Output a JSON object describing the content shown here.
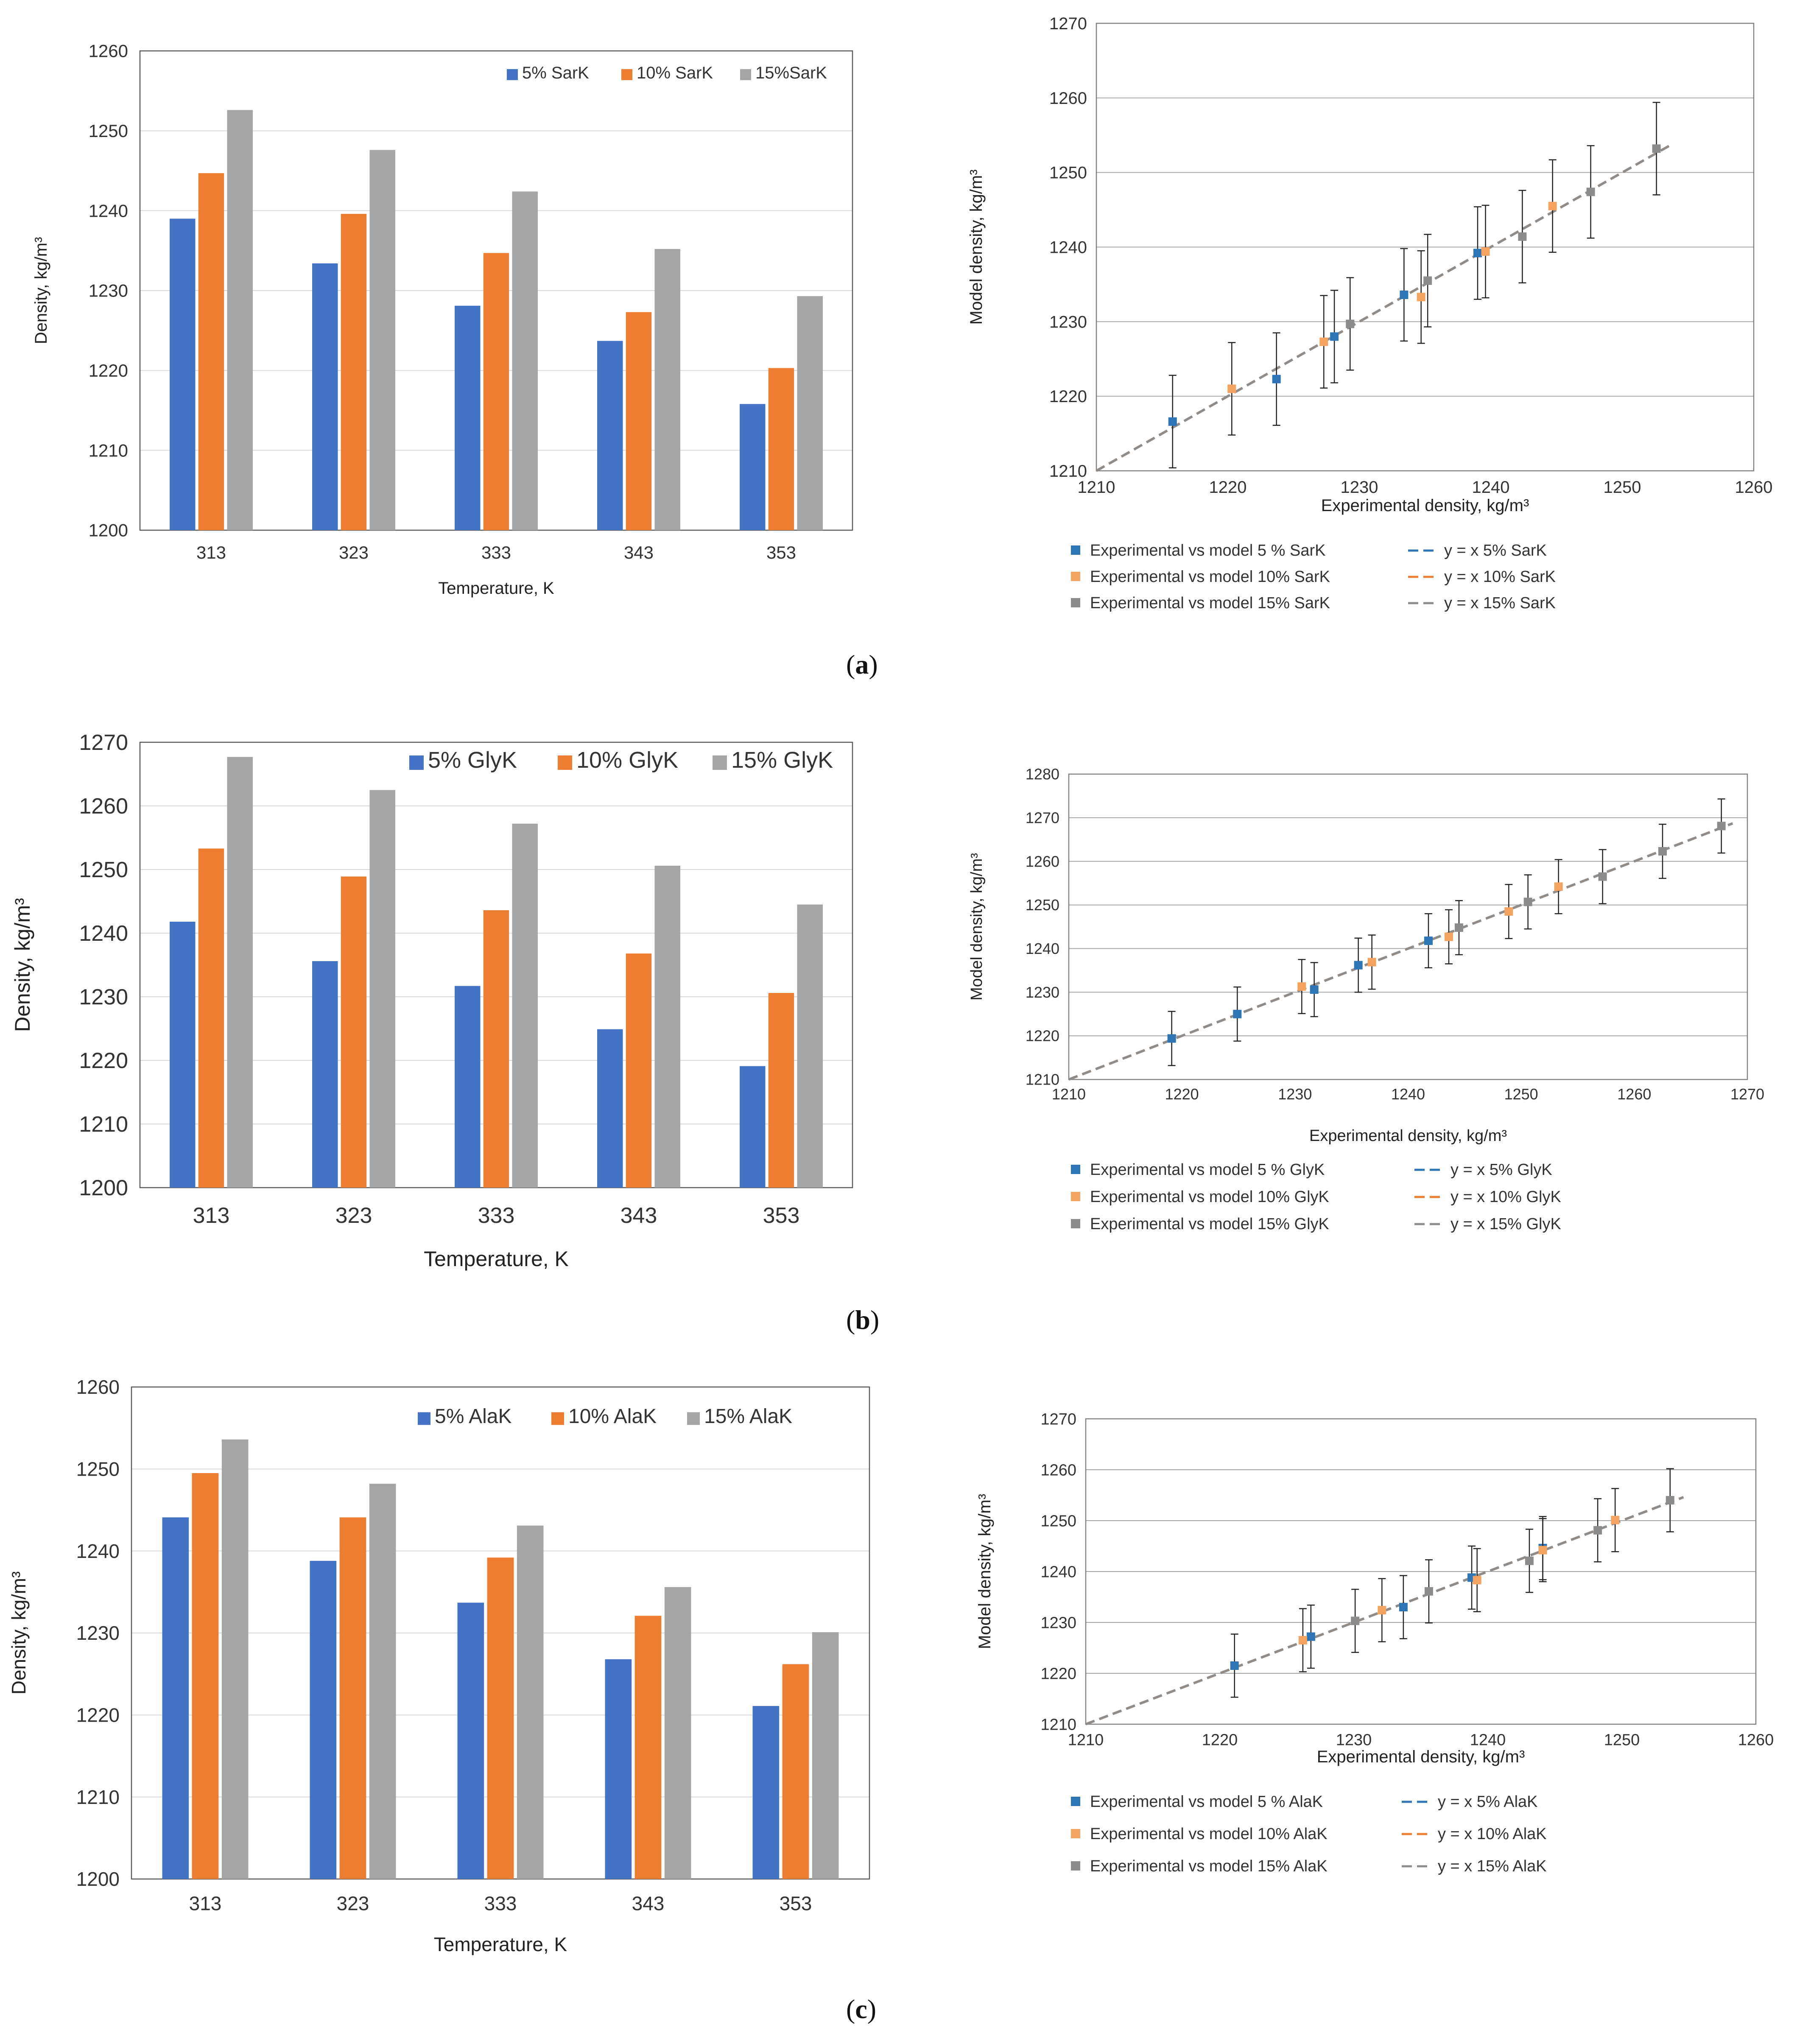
{
  "panels": [
    {
      "label": "a",
      "bar": {
        "type": "bar",
        "categories": [
          "313",
          "323",
          "333",
          "343",
          "353"
        ],
        "series": [
          {
            "name": "5% SarK",
            "values": [
              1239,
              1233.4,
              1228.1,
              1223.7,
              1215.8
            ]
          },
          {
            "name": "10% SarK",
            "values": [
              1244.7,
              1239.6,
              1234.7,
              1227.3,
              1220.3
            ]
          },
          {
            "name": "15%SarK",
            "values": [
              1252.6,
              1247.6,
              1242.4,
              1235.2,
              1229.3
            ]
          }
        ],
        "xlabel": "Temperature, K",
        "ylabel": "Density, kg/m³",
        "ylim": [
          1200,
          1260
        ],
        "yticks": [
          "1200",
          "1210",
          "1220",
          "1230",
          "1240",
          "1250",
          "1260"
        ],
        "legend": "top-right"
      },
      "scatter": {
        "type": "scatter",
        "xlabel": "Experimental density, kg/m³",
        "ylabel": "Model density, kg/m³",
        "xlim": [
          1210,
          1260
        ],
        "ylim": [
          1210,
          1270
        ],
        "xticks": [
          "1210",
          "1220",
          "1230",
          "1240",
          "1250",
          "1260"
        ],
        "yticks": [
          "1210",
          "1220",
          "1230",
          "1240",
          "1250",
          "1260",
          "1270"
        ],
        "error": 6.2,
        "series": [
          {
            "name": "Experimental vs model 5 % SarK",
            "x": [
              1215.8,
              1223.7,
              1228.1,
              1233.4,
              1239
            ],
            "y": [
              1216.6,
              1222.3,
              1228,
              1233.6,
              1239.2
            ]
          },
          {
            "name": "Experimental vs model 10% SarK",
            "x": [
              1220.3,
              1227.3,
              1234.7,
              1239.6,
              1244.7
            ],
            "y": [
              1221,
              1227.3,
              1233.3,
              1239.4,
              1245.5
            ]
          },
          {
            "name": "Experimental vs model 15% SarK",
            "x": [
              1229.3,
              1235.2,
              1242.4,
              1247.6,
              1252.6
            ],
            "y": [
              1229.7,
              1235.5,
              1241.4,
              1247.4,
              1253.2
            ]
          }
        ],
        "fits": [
          {
            "name": "y = x 5% SarK"
          },
          {
            "name": "y = x 10% SarK"
          },
          {
            "name": "y = x 15% SarK"
          }
        ]
      }
    },
    {
      "label": "b",
      "bar": {
        "type": "bar",
        "categories": [
          "313",
          "323",
          "333",
          "343",
          "353"
        ],
        "series": [
          {
            "name": "5% GlyK",
            "values": [
              1241.8,
              1235.6,
              1231.7,
              1224.9,
              1219.1
            ]
          },
          {
            "name": "10% GlyK",
            "values": [
              1253.3,
              1248.9,
              1243.6,
              1236.8,
              1230.6
            ]
          },
          {
            "name": "15% GlyK",
            "values": [
              1267.7,
              1262.5,
              1257.2,
              1250.6,
              1244.5
            ]
          }
        ],
        "xlabel": "Temperature, K",
        "ylabel": "Density, kg/m³",
        "ylim": [
          1200,
          1270
        ],
        "yticks": [
          "1200",
          "1210",
          "1220",
          "1230",
          "1240",
          "1250",
          "1260",
          "1270"
        ],
        "legend": "top-right"
      },
      "scatter": {
        "type": "scatter",
        "xlabel": "Experimental density, kg/m³",
        "ylabel": "Model density, kg/m³",
        "xlim": [
          1210,
          1270
        ],
        "ylim": [
          1210,
          1280
        ],
        "xticks": [
          "1210",
          "1220",
          "1230",
          "1240",
          "1250",
          "1260",
          "1270"
        ],
        "yticks": [
          "1210",
          "1220",
          "1230",
          "1240",
          "1250",
          "1260",
          "1270",
          "1280"
        ],
        "error": 6.2,
        "series": [
          {
            "name": "Experimental vs model 5 % GlyK",
            "x": [
              1219.1,
              1224.9,
              1231.7,
              1235.6,
              1241.8
            ],
            "y": [
              1219.4,
              1225,
              1230.6,
              1236.2,
              1241.8
            ]
          },
          {
            "name": "Experimental vs model 10% GlyK",
            "x": [
              1230.6,
              1236.8,
              1243.6,
              1248.9,
              1253.3
            ],
            "y": [
              1231.3,
              1236.9,
              1242.7,
              1248.5,
              1254.2
            ]
          },
          {
            "name": "Experimental vs model 15% GlyK",
            "x": [
              1244.5,
              1250.6,
              1257.2,
              1262.5,
              1267.7
            ],
            "y": [
              1244.8,
              1250.7,
              1256.5,
              1262.3,
              1268.1
            ]
          }
        ],
        "fits": [
          {
            "name": "y = x 5% GlyK"
          },
          {
            "name": "y = x 10% GlyK"
          },
          {
            "name": "y = x 15% GlyK"
          }
        ]
      }
    },
    {
      "label": "c",
      "bar": {
        "type": "bar",
        "categories": [
          "313",
          "323",
          "333",
          "343",
          "353"
        ],
        "series": [
          {
            "name": "5% AlaK",
            "values": [
              1244.1,
              1238.8,
              1233.7,
              1226.8,
              1221.1
            ]
          },
          {
            "name": "10% AlaK",
            "values": [
              1249.5,
              1244.1,
              1239.2,
              1232.1,
              1226.2
            ]
          },
          {
            "name": "15% AlaK",
            "values": [
              1253.6,
              1248.2,
              1243.1,
              1235.6,
              1230.1
            ]
          }
        ],
        "xlabel": "Temperature, K",
        "ylabel": "Density, kg/m³",
        "ylim": [
          1200,
          1260
        ],
        "yticks": [
          "1200",
          "1210",
          "1220",
          "1230",
          "1240",
          "1250",
          "1260"
        ],
        "legend": "top-right"
      },
      "scatter": {
        "type": "scatter",
        "xlabel": "Experimental density, kg/m³",
        "ylabel": "Model density, kg/m³",
        "xlim": [
          1210,
          1260
        ],
        "ylim": [
          1210,
          1270
        ],
        "xticks": [
          "1210",
          "1220",
          "1230",
          "1240",
          "1250",
          "1260"
        ],
        "yticks": [
          "1210",
          "1220",
          "1230",
          "1240",
          "1250",
          "1260",
          "1270"
        ],
        "error": 6.2,
        "series": [
          {
            "name": "Experimental vs model 5 % AlaK",
            "x": [
              1221.1,
              1226.8,
              1233.7,
              1238.8,
              1244.1
            ],
            "y": [
              1221.5,
              1227.2,
              1233,
              1238.8,
              1244.6
            ]
          },
          {
            "name": "Experimental vs model 10% AlaK",
            "x": [
              1226.2,
              1232.1,
              1239.2,
              1244.1,
              1249.5
            ],
            "y": [
              1226.5,
              1232.4,
              1238.3,
              1244.2,
              1250.1
            ]
          },
          {
            "name": "Experimental vs model 15% AlaK",
            "x": [
              1230.1,
              1235.6,
              1243.1,
              1248.2,
              1253.6
            ],
            "y": [
              1230.3,
              1236.1,
              1242.1,
              1248.1,
              1254
            ]
          }
        ],
        "fits": [
          {
            "name": "y = x 5% AlaK"
          },
          {
            "name": "y = x 10% AlaK"
          },
          {
            "name": "y = x 15% AlaK"
          }
        ]
      }
    }
  ],
  "colors": {
    "bar": [
      "#4472c4",
      "#ed7d31",
      "#a5a5a5"
    ],
    "scatter": [
      "#2e75b6",
      "#f4a460",
      "#8c8c8c"
    ],
    "fit": [
      "#2e75b6",
      "#ed7d31",
      "#8c8c8c"
    ],
    "grid": "#d9d9d9",
    "axis": "#7f7f7f"
  },
  "chart_data": [
    {
      "type": "bar",
      "title": "(a) bar",
      "categories": [
        "313",
        "323",
        "333",
        "343",
        "353"
      ],
      "series": [
        {
          "name": "5% SarK",
          "values": [
            1239,
            1233.4,
            1228.1,
            1223.7,
            1215.8
          ]
        },
        {
          "name": "10% SarK",
          "values": [
            1244.7,
            1239.6,
            1234.7,
            1227.3,
            1220.3
          ]
        },
        {
          "name": "15%SarK",
          "values": [
            1252.6,
            1247.6,
            1242.4,
            1235.2,
            1229.3
          ]
        }
      ],
      "xlabel": "Temperature, K",
      "ylabel": "Density, kg/m³",
      "ylim": [
        1200,
        1260
      ]
    },
    {
      "type": "scatter",
      "title": "(a) scatter",
      "xlim": [
        1210,
        1260
      ],
      "ylim": [
        1210,
        1270
      ],
      "xlabel": "Experimental density, kg/m³",
      "ylabel": "Model density, kg/m³"
    },
    {
      "type": "bar",
      "title": "(b) bar",
      "categories": [
        "313",
        "323",
        "333",
        "343",
        "353"
      ],
      "series": [
        {
          "name": "5% GlyK",
          "values": [
            1241.8,
            1235.6,
            1231.7,
            1224.9,
            1219.1
          ]
        },
        {
          "name": "10% GlyK",
          "values": [
            1253.3,
            1248.9,
            1243.6,
            1236.8,
            1230.6
          ]
        },
        {
          "name": "15% GlyK",
          "values": [
            1267.7,
            1262.5,
            1257.2,
            1250.6,
            1244.5
          ]
        }
      ],
      "xlabel": "Temperature, K",
      "ylabel": "Density, kg/m³",
      "ylim": [
        1200,
        1270
      ]
    },
    {
      "type": "scatter",
      "title": "(b) scatter",
      "xlim": [
        1210,
        1270
      ],
      "ylim": [
        1210,
        1280
      ],
      "xlabel": "Experimental density, kg/m³",
      "ylabel": "Model density, kg/m³"
    },
    {
      "type": "bar",
      "title": "(c) bar",
      "categories": [
        "313",
        "323",
        "333",
        "343",
        "353"
      ],
      "series": [
        {
          "name": "5% AlaK",
          "values": [
            1244.1,
            1238.8,
            1233.7,
            1226.8,
            1221.1
          ]
        },
        {
          "name": "10% AlaK",
          "values": [
            1249.5,
            1244.1,
            1239.2,
            1232.1,
            1226.2
          ]
        },
        {
          "name": "15% AlaK",
          "values": [
            1253.6,
            1248.2,
            1243.1,
            1235.6,
            1230.1
          ]
        }
      ],
      "xlabel": "Temperature, K",
      "ylabel": "Density, kg/m³",
      "ylim": [
        1200,
        1260
      ]
    },
    {
      "type": "scatter",
      "title": "(c) scatter",
      "xlim": [
        1210,
        1260
      ],
      "ylim": [
        1210,
        1270
      ],
      "xlabel": "Experimental density, kg/m³",
      "ylabel": "Model density, kg/m³"
    }
  ]
}
